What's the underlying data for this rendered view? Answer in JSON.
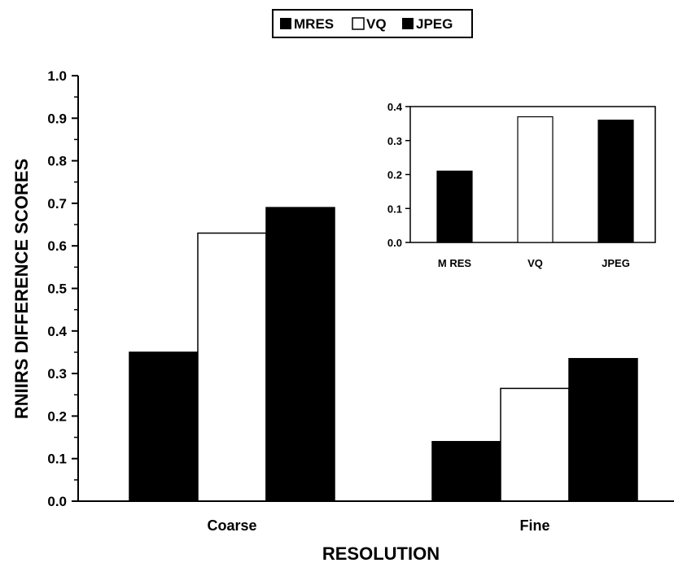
{
  "chart_data": [
    {
      "type": "bar",
      "categories": [
        "Coarse",
        "Fine"
      ],
      "series": [
        {
          "name": "MRES",
          "color": "#000000",
          "values": [
            0.35,
            0.14
          ]
        },
        {
          "name": "VQ",
          "color": "#ffffff",
          "values": [
            0.63,
            0.265
          ]
        },
        {
          "name": "JPEG",
          "color": "#000000",
          "values": [
            0.69,
            0.335
          ]
        }
      ],
      "xlabel": "RESOLUTION",
      "ylabel": "RNIIRS DIFFERENCE SCORES",
      "ylim": [
        0,
        1.0
      ],
      "yticks": [
        "0.0",
        "0.1",
        "0.2",
        "0.3",
        "0.4",
        "0.5",
        "0.6",
        "0.7",
        "0.8",
        "0.9",
        "1.0"
      ],
      "legend": "top-center"
    },
    {
      "type": "bar",
      "categories": [
        "M RES",
        "VQ",
        "JPEG"
      ],
      "values": [
        0.21,
        0.37,
        0.36
      ],
      "colors": [
        "#000000",
        "#ffffff",
        "#000000"
      ],
      "ylim": [
        0,
        0.4
      ],
      "yticks": [
        "0.0",
        "0.1",
        "0.2",
        "0.3",
        "0.4"
      ],
      "legend": "none"
    }
  ]
}
